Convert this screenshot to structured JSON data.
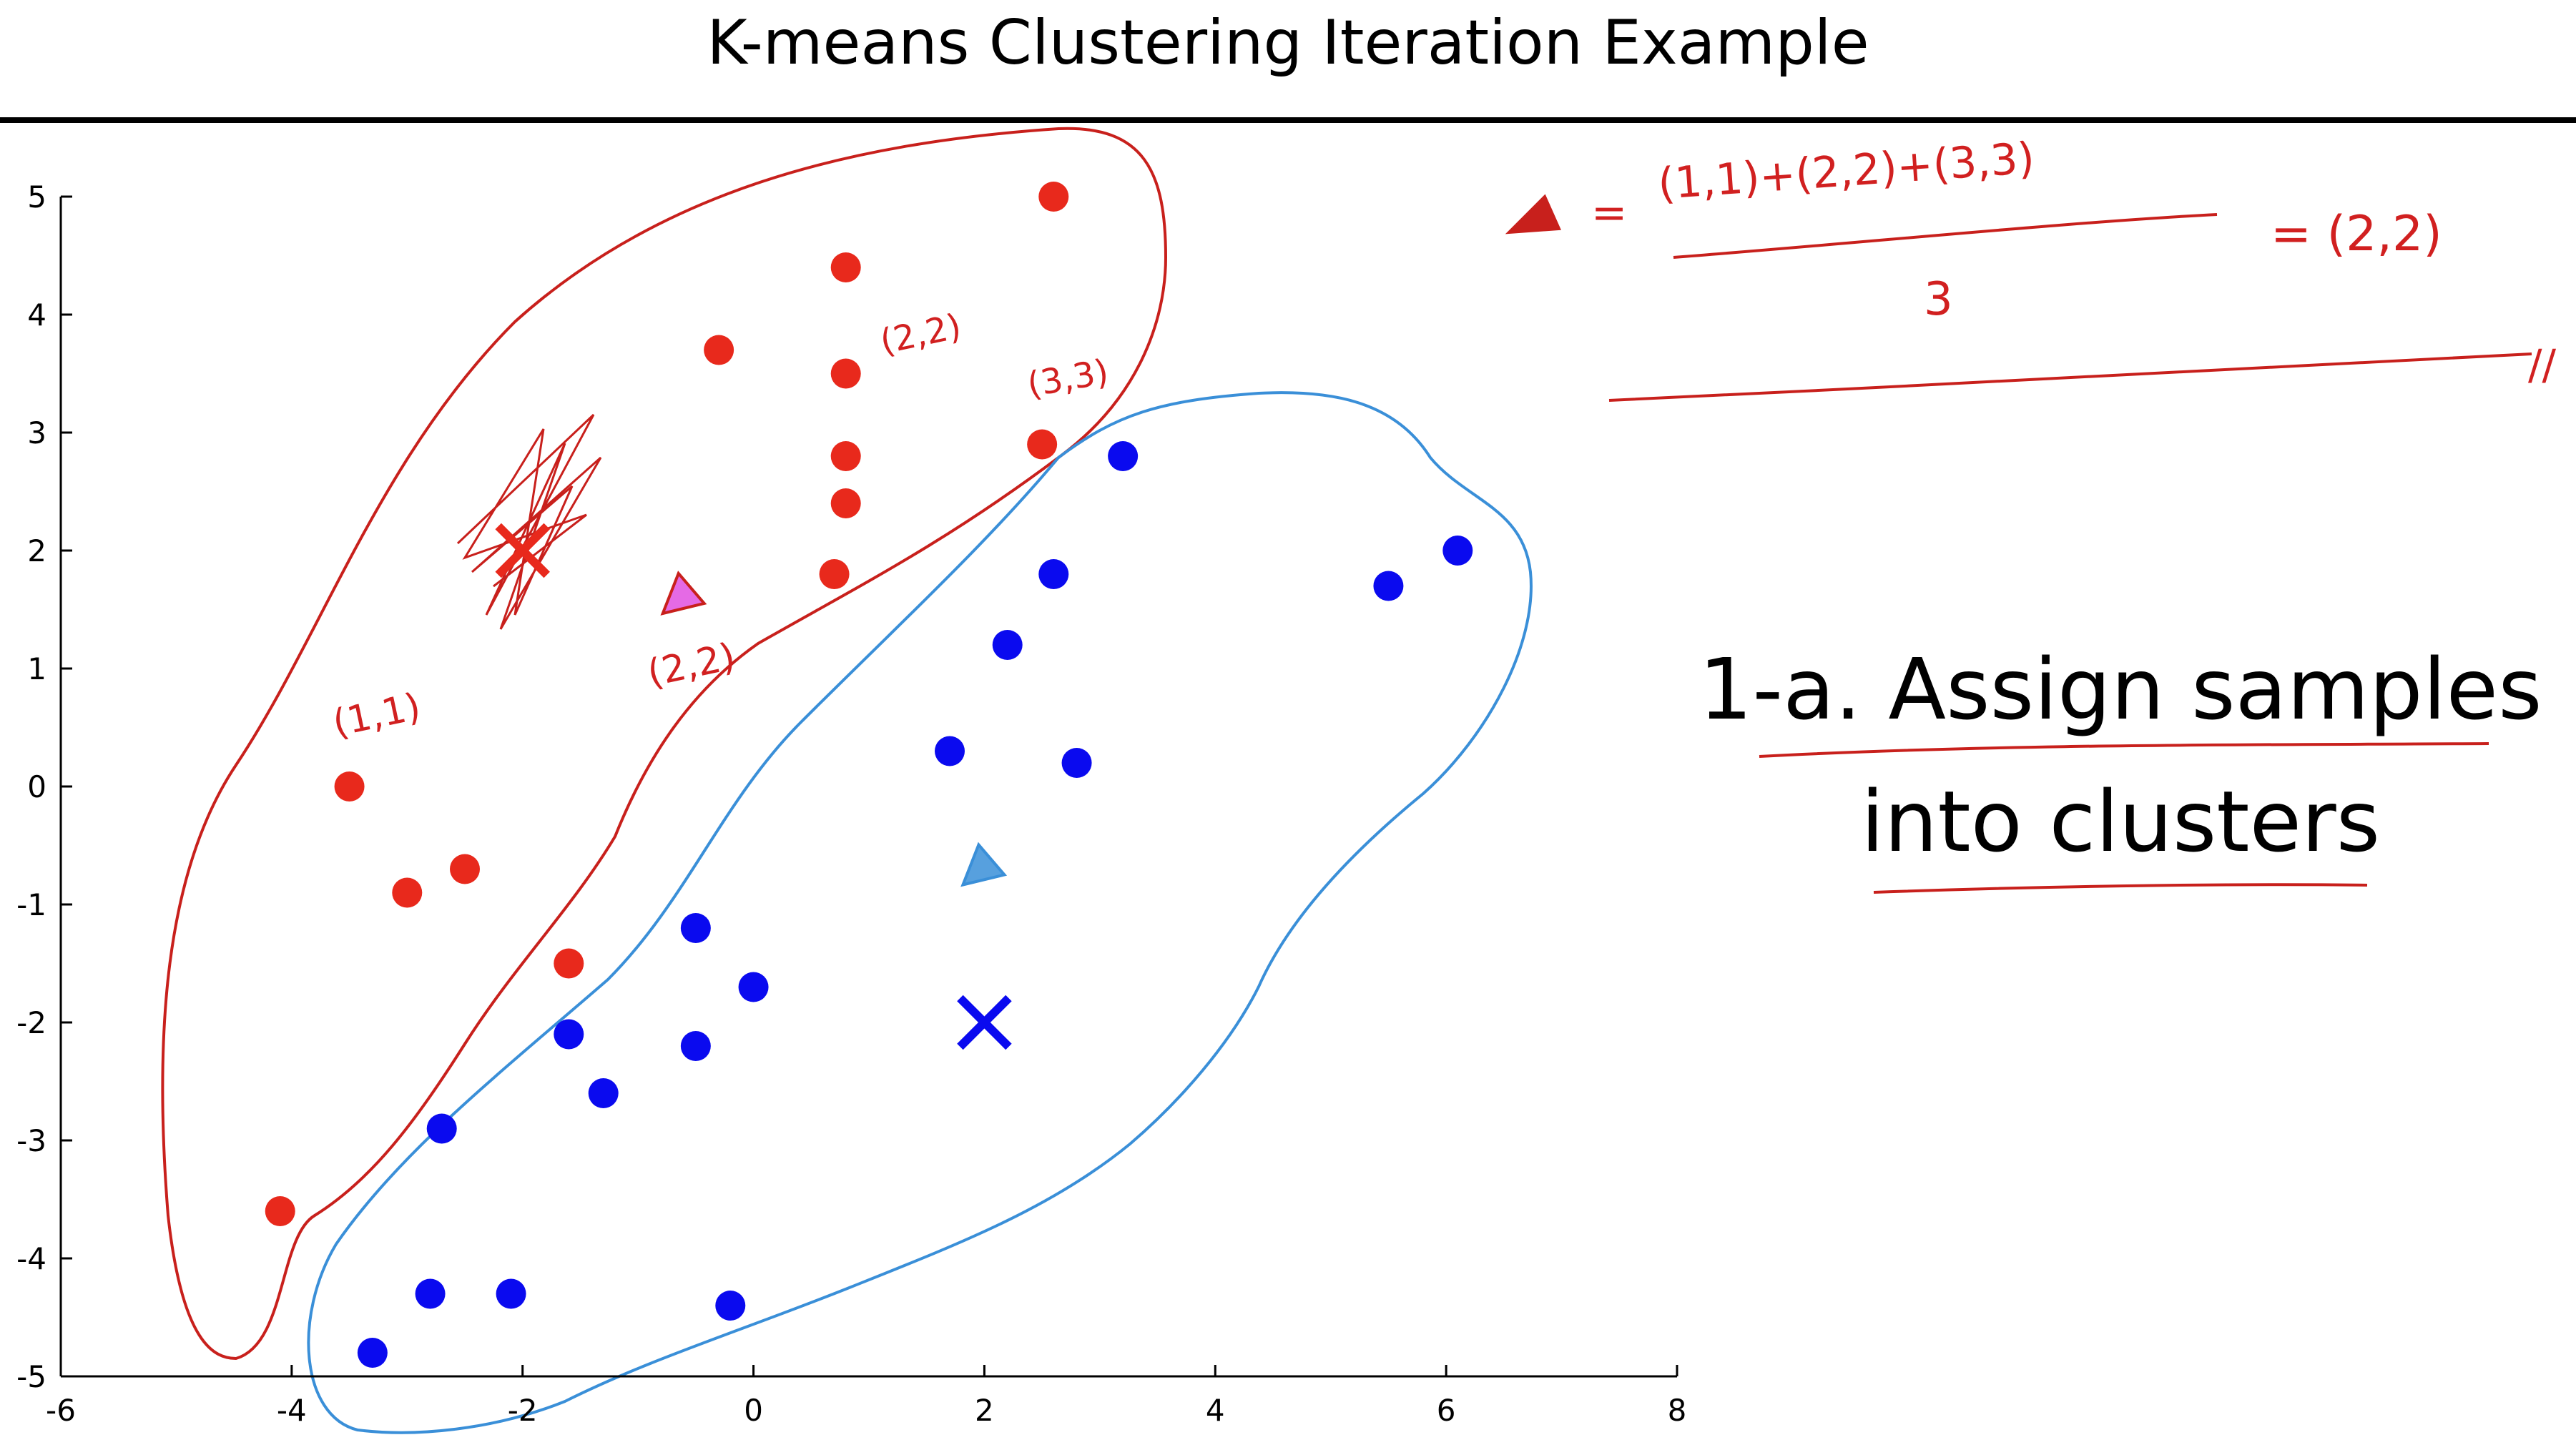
{
  "slide": {
    "title": "K-means Clustering Iteration Example",
    "step_line1": "1-a. Assign samples",
    "step_line2": "into clusters"
  },
  "annotations": {
    "formula_numerator": "(1,1)+(2,2)+(3,3)",
    "formula_denominator": "3",
    "formula_result": "= (2,2)",
    "formula_equals": "=",
    "label_22_top": "(2,2)",
    "label_33": "(3,3)",
    "label_11": "(1,1)",
    "label_22_mid": "(2,2)",
    "end_mark": "//"
  },
  "colors": {
    "red": "#e8291c",
    "blue": "#0a0aef",
    "ink_red": "#c8201c",
    "ink_blue": "#3a8fd8",
    "magenta": "#e050e0"
  },
  "chart_data": {
    "type": "scatter",
    "xlim": [
      -6,
      8
    ],
    "ylim": [
      -5,
      5
    ],
    "xticks": [
      -6,
      -4,
      -2,
      0,
      2,
      4,
      6,
      8
    ],
    "yticks": [
      5,
      4,
      3,
      2,
      1,
      0,
      -1,
      -2,
      -3,
      -4,
      -5
    ],
    "grid": false,
    "series": [
      {
        "color": "#e8291c",
        "points": [
          [
            2.6,
            5.0
          ],
          [
            0.8,
            4.4
          ],
          [
            -0.3,
            3.7
          ],
          [
            0.8,
            3.5
          ],
          [
            0.8,
            2.8
          ],
          [
            0.8,
            2.4
          ],
          [
            0.7,
            1.8
          ],
          [
            2.5,
            2.9
          ],
          [
            -3.5,
            0.0
          ],
          [
            -2.5,
            -0.7
          ],
          [
            -3.0,
            -0.9
          ],
          [
            -1.6,
            -1.5
          ],
          [
            -4.1,
            -3.6
          ]
        ]
      },
      {
        "color": "#0a0aef",
        "points": [
          [
            3.2,
            2.8
          ],
          [
            2.6,
            1.8
          ],
          [
            2.2,
            1.2
          ],
          [
            1.7,
            0.3
          ],
          [
            2.8,
            0.2
          ],
          [
            5.5,
            1.7
          ],
          [
            6.1,
            2.0
          ],
          [
            -0.5,
            -1.2
          ],
          [
            0.0,
            -1.7
          ],
          [
            -1.6,
            -2.1
          ],
          [
            -0.5,
            -2.2
          ],
          [
            -1.3,
            -2.6
          ],
          [
            -2.7,
            -2.9
          ],
          [
            -2.8,
            -4.3
          ],
          [
            -2.1,
            -4.3
          ],
          [
            -0.2,
            -4.4
          ],
          [
            -3.3,
            -4.8
          ]
        ]
      }
    ],
    "centroids": [
      {
        "color": "#e8291c",
        "x": -2.0,
        "y": 2.0,
        "marker": "x"
      },
      {
        "color": "#0a0aef",
        "x": 2.0,
        "y": -2.0,
        "marker": "x"
      }
    ],
    "new_centroids": [
      {
        "color": "#e050e0",
        "x": -0.6,
        "y": 1.6,
        "marker": "triangle"
      },
      {
        "color": "#3a8fd8",
        "x": 2.0,
        "y": -0.7,
        "marker": "triangle"
      }
    ]
  }
}
